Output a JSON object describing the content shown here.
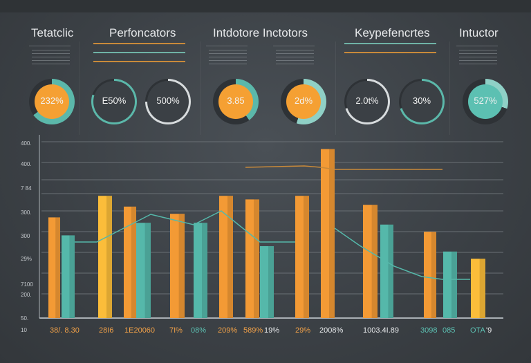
{
  "titles": [
    "Tetatclic",
    "Perfoncators",
    "Intdotore Inctotors",
    "Keypefencrtes",
    "Intuctor"
  ],
  "donuts": [
    {
      "label": "232%",
      "fill": "#f5a033",
      "ring": "#5bb8aa",
      "percent": 65
    },
    {
      "label": "E50%",
      "fill": "#3b4045",
      "ring": "#5bb8aa",
      "percent": 80
    },
    {
      "label": "500%",
      "fill": "#3b4045",
      "ring": "#d8dcde",
      "percent": 75
    },
    {
      "label": "3.85",
      "fill": "#f5a033",
      "ring": "#5bb8aa",
      "percent": 40
    },
    {
      "label": "2d%",
      "fill": "#f5a033",
      "ring": "#8fd0c6",
      "percent": 55
    },
    {
      "label": "2.0t%",
      "fill": "#3b4045",
      "ring": "#d8dcde",
      "percent": 70
    },
    {
      "label": "30%",
      "fill": "#3b4045",
      "ring": "#5bb8aa",
      "percent": 70
    },
    {
      "label": "527%",
      "fill": "#5cc0b2",
      "ring": "#8fd0c6",
      "percent": 30
    }
  ],
  "colors": {
    "orange": "#f39a35",
    "yellow": "#fbbd3a",
    "teal": "#55b8aa",
    "axis": "#aab0b5"
  },
  "chart_data": {
    "type": "bar",
    "ylim": [
      0,
      100
    ],
    "grid": true,
    "yticks": [
      "400.",
      "400.",
      "7 84",
      "300.",
      "300",
      "29%",
      "7100",
      "200.",
      "50.",
      "10"
    ],
    "bars": [
      {
        "color": "orange",
        "value": 56
      },
      {
        "color": "teal",
        "value": 46
      },
      {
        "color": "yellow",
        "value": 68
      },
      {
        "color": "orange",
        "value": 62
      },
      {
        "color": "teal",
        "value": 53
      },
      {
        "color": "orange",
        "value": 58
      },
      {
        "color": "teal",
        "value": 53
      },
      {
        "color": "orange",
        "value": 68
      },
      {
        "color": "orange",
        "value": 66
      },
      {
        "color": "teal",
        "value": 40
      },
      {
        "color": "orange",
        "value": 68
      },
      {
        "color": "orange",
        "value": 94
      },
      {
        "color": "orange",
        "value": 63
      },
      {
        "color": "teal",
        "value": 52
      },
      {
        "color": "orange",
        "value": 48
      },
      {
        "color": "teal",
        "value": 37
      },
      {
        "color": "yellow",
        "value": 33
      }
    ],
    "xlabels": [
      {
        "text": "38/. 8.30",
        "color": "orange"
      },
      {
        "text": "28I6",
        "color": "orange"
      },
      {
        "text": "1E20060",
        "color": "orange"
      },
      {
        "text": "7I%",
        "color": "orange"
      },
      {
        "text": "08%",
        "color": "teal"
      },
      {
        "text": "209%",
        "color": "orange"
      },
      {
        "text": "589%",
        "color": "orange"
      },
      {
        "text": "19%",
        "color": "white"
      },
      {
        "text": "29%",
        "color": "orange"
      },
      {
        "text": "2008%",
        "color": "white"
      },
      {
        "text": "1003.4I.89",
        "color": "white"
      },
      {
        "text": "3098",
        "color": "teal"
      },
      {
        "text": "085",
        "color": "teal"
      },
      {
        "text": "OTA",
        "color": "teal"
      },
      {
        "text": "'9",
        "color": "white"
      }
    ]
  }
}
